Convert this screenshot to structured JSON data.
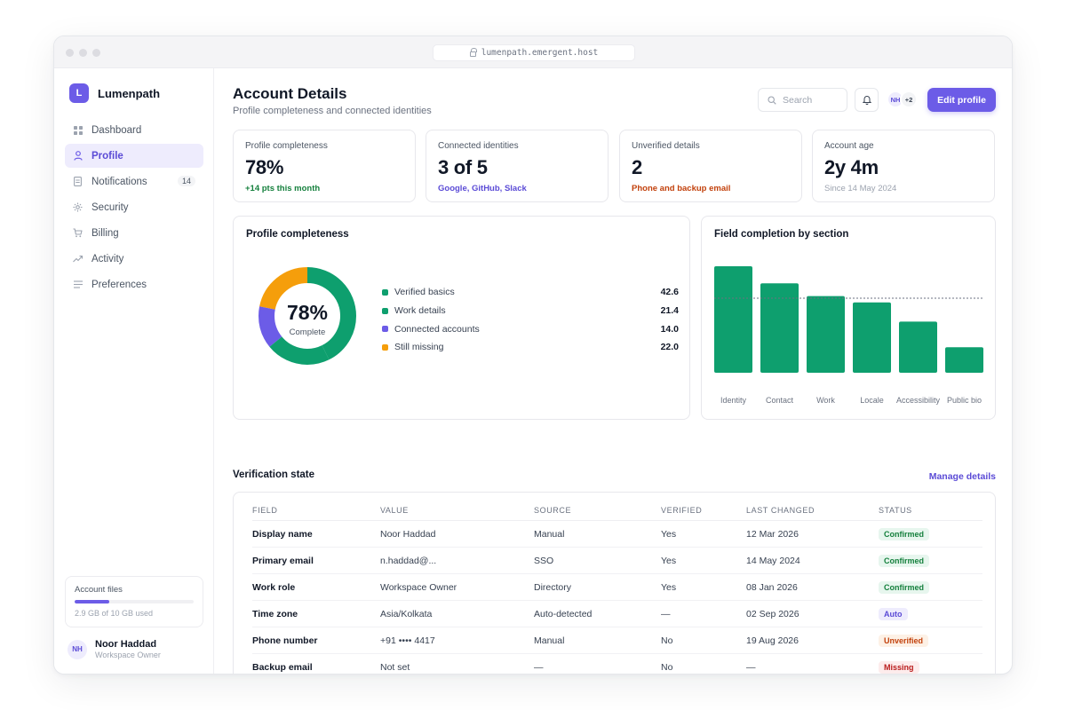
{
  "browser": {
    "url": "lumenpath.emergent.host"
  },
  "brand": {
    "initial": "L",
    "name": "Lumenpath"
  },
  "sidebar": {
    "items": [
      {
        "label": "Dashboard",
        "icon": "grid-icon"
      },
      {
        "label": "Profile",
        "icon": "user-icon",
        "active": true
      },
      {
        "label": "Notifications",
        "icon": "document-icon",
        "badge": "14"
      },
      {
        "label": "Security",
        "icon": "gear-icon"
      },
      {
        "label": "Billing",
        "icon": "cart-icon"
      },
      {
        "label": "Activity",
        "icon": "trend-icon"
      },
      {
        "label": "Preferences",
        "icon": "list-icon"
      }
    ],
    "storage": {
      "title": "Account files",
      "used_text": "2.9 GB of 10 GB used",
      "fraction": 0.29
    },
    "user": {
      "initials": "NH",
      "name": "Noor Haddad",
      "role": "Workspace Owner"
    }
  },
  "header": {
    "title": "Account Details",
    "subtitle": "Profile completeness and connected identities",
    "search_placeholder": "Search",
    "avatars": [
      "NH",
      "+2"
    ],
    "edit_label": "Edit profile"
  },
  "kpis": [
    {
      "label": "Profile completeness",
      "value": "78%",
      "note": "+14 pts this month",
      "note_color": "#15803d"
    },
    {
      "label": "Connected identities",
      "value": "3 of 5",
      "note": "Google, GitHub, Slack",
      "note_color": "#5b4bd6"
    },
    {
      "label": "Unverified details",
      "value": "2",
      "note": "Phone and backup email",
      "note_color": "#c2410c"
    },
    {
      "label": "Account age",
      "value": "2y 4m",
      "note": "Since 14 May 2024",
      "note_color": "#9ca3af"
    }
  ],
  "donut": {
    "title": "Profile completeness",
    "center_value": "78%",
    "center_label": "Complete",
    "segments": [
      {
        "label": "Verified basics",
        "value": "42.6",
        "color": "#0e9f6e"
      },
      {
        "label": "Work details",
        "value": "21.4",
        "color": "#0e9f6e"
      },
      {
        "label": "Connected accounts",
        "value": "14.0",
        "color": "#6c5ce7"
      },
      {
        "label": "Still missing",
        "value": "22.0",
        "color": "#f59e0b"
      }
    ]
  },
  "chart_data": {
    "type": "bar",
    "title": "Field completion by section",
    "categories": [
      "Identity",
      "Contact",
      "Work",
      "Locale",
      "Accessibility",
      "Public bio"
    ],
    "values": [
      100,
      84,
      72,
      66,
      48,
      24
    ],
    "ylim": [
      0,
      100
    ],
    "target_line": 70,
    "colors": {
      "bar": "#0e9f6e",
      "target": "#6b7280"
    }
  },
  "verification": {
    "title": "Verification state",
    "manage_label": "Manage details",
    "columns": [
      "FIELD",
      "VALUE",
      "SOURCE",
      "VERIFIED",
      "LAST CHANGED",
      "STATUS"
    ],
    "rows": [
      {
        "field": "Display name",
        "value": "Noor Haddad",
        "source": "Manual",
        "verified": "Yes",
        "changed": "12 Mar 2026",
        "status": "Confirmed",
        "status_kind": "confirmed"
      },
      {
        "field": "Primary email",
        "value": "n.haddad@...",
        "source": "SSO",
        "verified": "Yes",
        "changed": "14 May 2024",
        "status": "Confirmed",
        "status_kind": "confirmed"
      },
      {
        "field": "Work role",
        "value": "Workspace Owner",
        "source": "Directory",
        "verified": "Yes",
        "changed": "08 Jan 2026",
        "status": "Confirmed",
        "status_kind": "confirmed"
      },
      {
        "field": "Time zone",
        "value": "Asia/Kolkata",
        "source": "Auto-detected",
        "verified": "—",
        "changed": "02 Sep 2026",
        "status": "Auto",
        "status_kind": "auto"
      },
      {
        "field": "Phone number",
        "value": "+91 •••• 4417",
        "source": "Manual",
        "verified": "No",
        "changed": "19 Aug 2026",
        "status": "Unverified",
        "status_kind": "unverified"
      },
      {
        "field": "Backup email",
        "value": "Not set",
        "source": "—",
        "verified": "No",
        "changed": "—",
        "status": "Missing",
        "status_kind": "missing"
      }
    ],
    "status_styles": {
      "confirmed": {
        "bg": "#e7f6ee",
        "fg": "#15803d"
      },
      "auto": {
        "bg": "#eeecfd",
        "fg": "#5b4bd6"
      },
      "unverified": {
        "bg": "#fdf1e6",
        "fg": "#c2410c"
      },
      "missing": {
        "bg": "#fdecec",
        "fg": "#b91c1c"
      }
    }
  }
}
